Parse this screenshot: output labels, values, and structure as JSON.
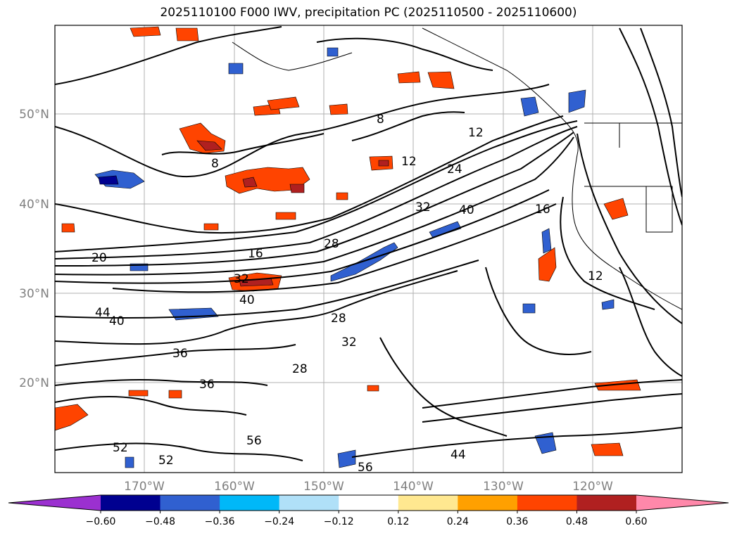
{
  "title": "2025110100 F000 IWV, precipitation PC (2025110500 - 2025110600)",
  "axes": {
    "lat_labels": [
      "50°N",
      "40°N",
      "30°N",
      "20°N"
    ],
    "lon_labels": [
      "170°W",
      "160°W",
      "150°W",
      "140°W",
      "130°W",
      "120°W"
    ]
  },
  "colorbar": {
    "ticks": [
      "−0.60",
      "−0.48",
      "−0.36",
      "−0.24",
      "−0.12",
      "0.12",
      "0.24",
      "0.36",
      "0.48",
      "0.60"
    ],
    "colors": [
      "#9b30d0",
      "#000090",
      "#3060d0",
      "#00b8f8",
      "#b0e0f8",
      "#ffffff",
      "#ffe890",
      "#ffa000",
      "#ff4400",
      "#b02020",
      "#ff88aa"
    ]
  },
  "contour_labels": [
    "8",
    "12",
    "16",
    "20",
    "24",
    "28",
    "32",
    "36",
    "40",
    "44",
    "52",
    "56"
  ]
}
